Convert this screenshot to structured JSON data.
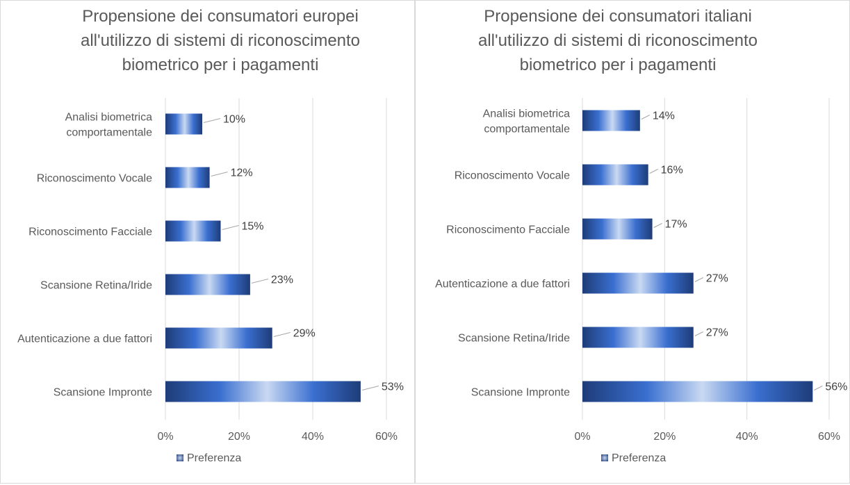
{
  "colors": {
    "bar_edge": "#1e3c78",
    "bar_mid": "#3a6fd0",
    "bar_highlight": "#c9d9f2",
    "grid": "#d9d9d9",
    "text": "#595959"
  },
  "chart_data": [
    {
      "type": "bar",
      "orientation": "horizontal",
      "title": [
        "Propensione dei consumatori europei",
        "all'utilizzo  di sistemi di riconoscimento",
        "biometrico per i pagamenti"
      ],
      "categories": [
        [
          "Analisi biometrica",
          "comportamentale"
        ],
        [
          "Riconoscimento Vocale"
        ],
        [
          "Riconoscimento Facciale"
        ],
        [
          "Scansione Retina/Iride"
        ],
        [
          "Autenticazione a due fattori"
        ],
        [
          "Scansione Impronte"
        ]
      ],
      "series": [
        {
          "name": "Preferenza",
          "values": [
            10,
            12,
            15,
            23,
            29,
            53
          ]
        }
      ],
      "data_labels": [
        "10%",
        "12%",
        "15%",
        "23%",
        "29%",
        "53%"
      ],
      "xlim": [
        0,
        60
      ],
      "ticks": [
        0,
        20,
        40,
        60
      ],
      "tick_labels": [
        "0%",
        "20%",
        "40%",
        "60%"
      ],
      "grid": true,
      "legend": "bottom"
    },
    {
      "type": "bar",
      "orientation": "horizontal",
      "title": [
        "Propensione dei consumatori italiani",
        "all'utilizzo  di sistemi di riconoscimento",
        "biometrico per i pagamenti"
      ],
      "categories": [
        [
          "Analisi biometrica",
          "comportamentale"
        ],
        [
          "Riconoscimento Vocale"
        ],
        [
          "Riconoscimento Facciale"
        ],
        [
          "Autenticazione a due fattori"
        ],
        [
          "Scansione Retina/Iride"
        ],
        [
          "Scansione Impronte"
        ]
      ],
      "series": [
        {
          "name": "Preferenza",
          "values": [
            14,
            16,
            17,
            27,
            27,
            56
          ]
        }
      ],
      "data_labels": [
        "14%",
        "16%",
        "17%",
        "27%",
        "27%",
        "56%"
      ],
      "xlim": [
        0,
        60
      ],
      "ticks": [
        0,
        20,
        40,
        60
      ],
      "tick_labels": [
        "0%",
        "20%",
        "40%",
        "60%"
      ],
      "grid": true,
      "legend": "bottom"
    }
  ]
}
